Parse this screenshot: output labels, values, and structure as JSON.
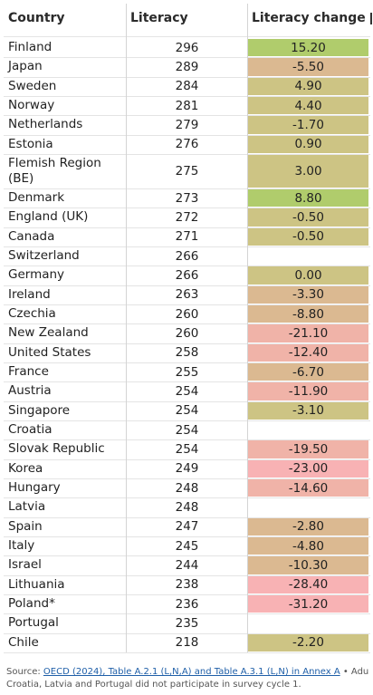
{
  "columns": {
    "country": "Country",
    "literacy": "Literacy",
    "change": "Literacy change"
  },
  "colors": {
    "large_positive": "#b0cc6c",
    "small_change": "#cdc484",
    "negative": "#dbb991",
    "large_negative": "#f0b3a8",
    "very_large_negative": "#f8b2b4",
    "link": "#1f5fa8"
  },
  "chart_data": {
    "type": "table",
    "columns": [
      "Country",
      "Literacy",
      "Literacy change"
    ],
    "rows": [
      {
        "country": "Finland",
        "literacy": "296",
        "change": "15.20",
        "band": "large_positive"
      },
      {
        "country": "Japan",
        "literacy": "289",
        "change": "-5.50",
        "band": "negative"
      },
      {
        "country": "Sweden",
        "literacy": "284",
        "change": "4.90",
        "band": "small_change"
      },
      {
        "country": "Norway",
        "literacy": "281",
        "change": "4.40",
        "band": "small_change"
      },
      {
        "country": "Netherlands",
        "literacy": "279",
        "change": "-1.70",
        "band": "small_change"
      },
      {
        "country": "Estonia",
        "literacy": "276",
        "change": "0.90",
        "band": "small_change"
      },
      {
        "country": "Flemish Region (BE)",
        "literacy": "275",
        "change": "3.00",
        "band": "small_change"
      },
      {
        "country": "Denmark",
        "literacy": "273",
        "change": "8.80",
        "band": "large_positive"
      },
      {
        "country": "England (UK)",
        "literacy": "272",
        "change": "-0.50",
        "band": "small_change"
      },
      {
        "country": "Canada",
        "literacy": "271",
        "change": "-0.50",
        "band": "small_change"
      },
      {
        "country": "Switzerland",
        "literacy": "266",
        "change": "",
        "band": "none"
      },
      {
        "country": "Germany",
        "literacy": "266",
        "change": "0.00",
        "band": "small_change"
      },
      {
        "country": "Ireland",
        "literacy": "263",
        "change": "-3.30",
        "band": "negative"
      },
      {
        "country": "Czechia",
        "literacy": "260",
        "change": "-8.80",
        "band": "negative"
      },
      {
        "country": "New Zealand",
        "literacy": "260",
        "change": "-21.10",
        "band": "large_negative"
      },
      {
        "country": "United States",
        "literacy": "258",
        "change": "-12.40",
        "band": "large_negative"
      },
      {
        "country": "France",
        "literacy": "255",
        "change": "-6.70",
        "band": "negative"
      },
      {
        "country": "Austria",
        "literacy": "254",
        "change": "-11.90",
        "band": "large_negative"
      },
      {
        "country": "Singapore",
        "literacy": "254",
        "change": "-3.10",
        "band": "small_change"
      },
      {
        "country": "Croatia",
        "literacy": "254",
        "change": "",
        "band": "none"
      },
      {
        "country": "Slovak Republic",
        "literacy": "254",
        "change": "-19.50",
        "band": "large_negative"
      },
      {
        "country": "Korea",
        "literacy": "249",
        "change": "-23.00",
        "band": "very_large_negative"
      },
      {
        "country": "Hungary",
        "literacy": "248",
        "change": "-14.60",
        "band": "large_negative"
      },
      {
        "country": "Latvia",
        "literacy": "248",
        "change": "",
        "band": "none"
      },
      {
        "country": "Spain",
        "literacy": "247",
        "change": "-2.80",
        "band": "negative"
      },
      {
        "country": "Italy",
        "literacy": "245",
        "change": "-4.80",
        "band": "negative"
      },
      {
        "country": "Israel",
        "literacy": "244",
        "change": "-10.30",
        "band": "negative"
      },
      {
        "country": "Lithuania",
        "literacy": "238",
        "change": "-28.40",
        "band": "very_large_negative"
      },
      {
        "country": "Poland*",
        "literacy": "236",
        "change": "-31.20",
        "band": "very_large_negative"
      },
      {
        "country": "Portugal",
        "literacy": "235",
        "change": "",
        "band": "none"
      },
      {
        "country": "Chile",
        "literacy": "218",
        "change": "-2.20",
        "band": "small_change"
      }
    ]
  },
  "footer": {
    "source_prefix": "Source: ",
    "source_link": "OECD (2024), Table A.2.1 (L,N,A) and Table A.3.1 (L,N) in Annex A",
    "source_suffix": " • Adu",
    "note": "Croatia, Latvia and Portugal did not participate in survey cycle 1."
  }
}
